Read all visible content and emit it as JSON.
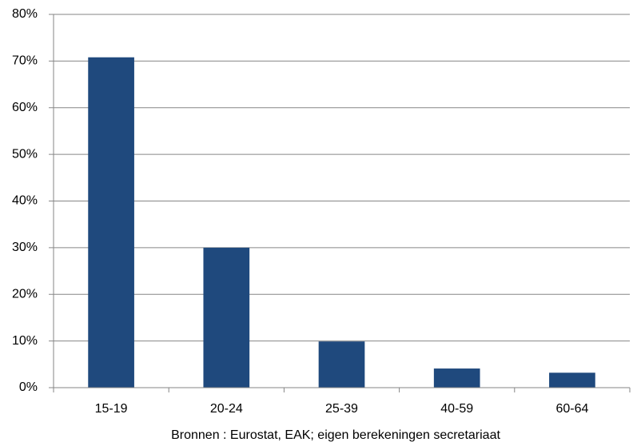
{
  "chart_data": {
    "type": "bar",
    "x_label": "Bronnen : Eurostat, EAK; eigen berekeningen secretariaat",
    "categories": [
      "15-19",
      "20-24",
      "25-39",
      "40-59",
      "60-64"
    ],
    "values": [
      70.8,
      30,
      9.9,
      4.1,
      3.2
    ],
    "color": "#1f497d",
    "ylim": [
      0,
      80
    ],
    "yticks": [
      {
        "value": 0,
        "label": "0%"
      },
      {
        "value": 10,
        "label": "10%"
      },
      {
        "value": 20,
        "label": "20%"
      },
      {
        "value": 30,
        "label": "30%"
      },
      {
        "value": 40,
        "label": "40%"
      },
      {
        "value": 50,
        "label": "50%"
      },
      {
        "value": 60,
        "label": "60%"
      },
      {
        "value": 70,
        "label": "70%"
      },
      {
        "value": 80,
        "label": "80%"
      }
    ],
    "grid": true
  }
}
